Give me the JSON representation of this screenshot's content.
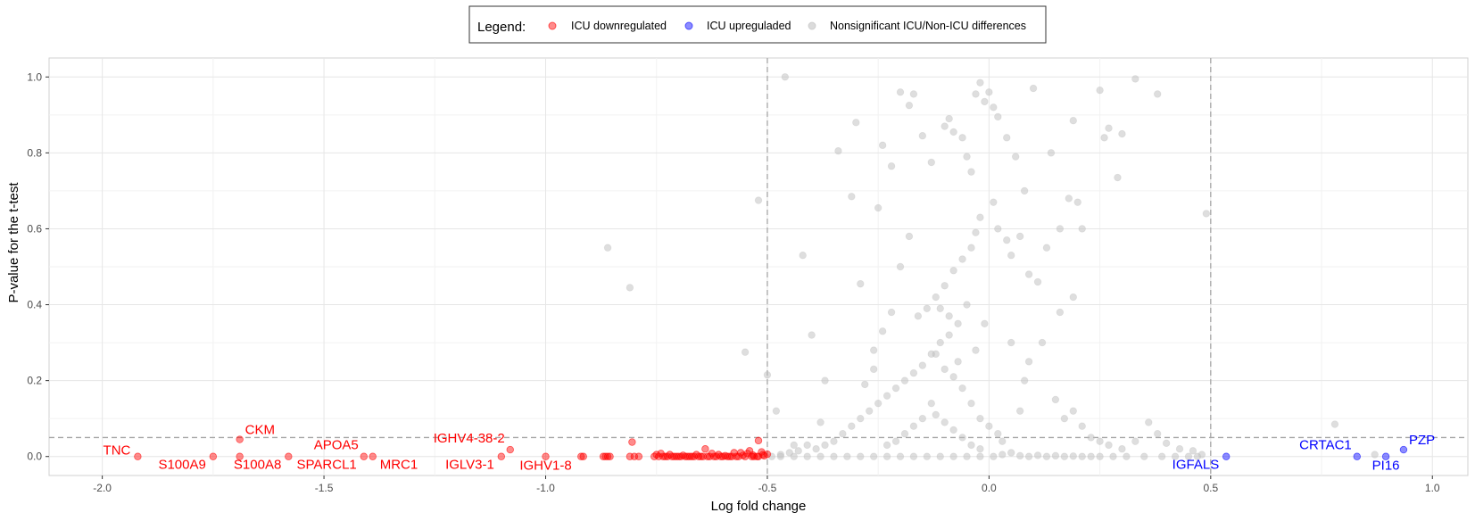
{
  "chart_data": {
    "type": "scatter",
    "xlabel": "Log fold change",
    "ylabel": "P-value for the t-test",
    "xlim": [
      -2.12,
      1.08
    ],
    "ylim": [
      -0.05,
      1.05
    ],
    "x_ticks": [
      -2.0,
      -1.5,
      -1.0,
      -0.5,
      0.0,
      0.5,
      1.0
    ],
    "x_tick_labels": [
      "-2.0",
      "-1.5",
      "-1.0",
      "-0.5",
      "0.0",
      "0.5",
      "1.0"
    ],
    "y_ticks": [
      0.0,
      0.2,
      0.4,
      0.6,
      0.8,
      1.0
    ],
    "y_tick_labels": [
      "0.0",
      "0.2",
      "0.4",
      "0.6",
      "0.8",
      "1.0"
    ],
    "grid": true,
    "thresholds": {
      "x": [
        -0.5,
        0.5
      ],
      "y": 0.05
    },
    "legend": {
      "title": "Legend:",
      "position": "top",
      "entries": [
        "ICU downregulated",
        "ICU upreguladed",
        "Nonsignificant ICU/Non-ICU differences"
      ]
    },
    "colors": {
      "down": "#ff0000",
      "up": "#0000ff",
      "ns": "#bebebe"
    },
    "series": [
      {
        "name": "ICU downregulated",
        "color": "#ff0000",
        "points": [
          [
            -1.92,
            0.0
          ],
          [
            -1.75,
            0.0
          ],
          [
            -1.69,
            0.045
          ],
          [
            -1.69,
            0.0
          ],
          [
            -1.58,
            0.0
          ],
          [
            -1.41,
            0.0
          ],
          [
            -1.39,
            0.0
          ],
          [
            -1.1,
            0.0
          ],
          [
            -1.08,
            0.018
          ],
          [
            -1.0,
            0.0
          ],
          [
            -0.92,
            0.0
          ],
          [
            -0.915,
            0.0
          ],
          [
            -0.87,
            0.0
          ],
          [
            -0.865,
            0.0
          ],
          [
            -0.86,
            0.0
          ],
          [
            -0.855,
            0.0
          ],
          [
            -0.81,
            0.0
          ],
          [
            -0.805,
            0.038
          ],
          [
            -0.8,
            0.0
          ],
          [
            -0.79,
            0.0
          ],
          [
            -0.75,
            0.005
          ],
          [
            -0.74,
            0.008
          ],
          [
            -0.73,
            0.0
          ],
          [
            -0.72,
            0.005
          ],
          [
            -0.71,
            0.0
          ],
          [
            -0.7,
            0.0
          ],
          [
            -0.69,
            0.003
          ],
          [
            -0.68,
            0.0
          ],
          [
            -0.67,
            0.0
          ],
          [
            -0.66,
            0.005
          ],
          [
            -0.65,
            0.0
          ],
          [
            -0.64,
            0.02
          ],
          [
            -0.63,
            0.0
          ],
          [
            -0.62,
            0.0
          ],
          [
            -0.61,
            0.005
          ],
          [
            -0.6,
            0.0
          ],
          [
            -0.59,
            0.0
          ],
          [
            -0.58,
            0.0
          ],
          [
            -0.57,
            0.0
          ],
          [
            -0.56,
            0.01
          ],
          [
            -0.55,
            0.0
          ],
          [
            -0.54,
            0.015
          ],
          [
            -0.53,
            0.0
          ],
          [
            -0.52,
            0.0
          ],
          [
            -0.51,
            0.005
          ],
          [
            -0.535,
            0.0
          ],
          [
            -0.545,
            0.008
          ],
          [
            -0.555,
            0.003
          ],
          [
            -0.565,
            0.0
          ],
          [
            -0.575,
            0.01
          ],
          [
            -0.585,
            0.0
          ],
          [
            -0.595,
            0.002
          ],
          [
            -0.605,
            0.0
          ],
          [
            -0.615,
            0.0
          ],
          [
            -0.625,
            0.008
          ],
          [
            -0.635,
            0.0
          ],
          [
            -0.645,
            0.0
          ],
          [
            -0.655,
            0.0
          ],
          [
            -0.665,
            0.0
          ],
          [
            -0.675,
            0.0
          ],
          [
            -0.685,
            0.0
          ],
          [
            -0.695,
            0.0
          ],
          [
            -0.705,
            0.0
          ],
          [
            -0.715,
            0.0
          ],
          [
            -0.725,
            0.0
          ],
          [
            -0.735,
            0.0
          ],
          [
            -0.745,
            0.0
          ],
          [
            -0.755,
            0.0
          ],
          [
            -0.52,
            0.042
          ],
          [
            -0.507,
            0.002
          ],
          [
            -0.5,
            0.006
          ],
          [
            -0.513,
            0.012
          ],
          [
            -0.523,
            0.0
          ],
          [
            -0.533,
            0.004
          ]
        ]
      },
      {
        "name": "ICU upreguladed",
        "color": "#0000ff",
        "points": [
          [
            0.535,
            0.0
          ],
          [
            0.83,
            0.0
          ],
          [
            0.895,
            0.0
          ],
          [
            0.935,
            0.018
          ]
        ]
      },
      {
        "name": "Nonsignificant ICU/Non-ICU differences",
        "color": "#bebebe",
        "points": [
          [
            -0.86,
            0.55
          ],
          [
            -0.81,
            0.445
          ],
          [
            -0.5,
            0.215
          ],
          [
            -0.52,
            0.675
          ],
          [
            -0.55,
            0.275
          ],
          [
            -0.46,
            1.0
          ],
          [
            -0.42,
            0.53
          ],
          [
            -0.4,
            0.32
          ],
          [
            -0.37,
            0.2
          ],
          [
            -0.34,
            0.805
          ],
          [
            -0.31,
            0.685
          ],
          [
            -0.3,
            0.88
          ],
          [
            -0.29,
            0.455
          ],
          [
            -0.25,
            0.655
          ],
          [
            -0.24,
            0.82
          ],
          [
            -0.22,
            0.765
          ],
          [
            -0.2,
            0.96
          ],
          [
            -0.18,
            0.925
          ],
          [
            -0.17,
            0.955
          ],
          [
            -0.15,
            0.845
          ],
          [
            -0.13,
            0.775
          ],
          [
            -0.1,
            0.87
          ],
          [
            -0.09,
            0.89
          ],
          [
            -0.08,
            0.855
          ],
          [
            -0.06,
            0.84
          ],
          [
            -0.05,
            0.79
          ],
          [
            -0.04,
            0.75
          ],
          [
            -0.03,
            0.955
          ],
          [
            -0.02,
            0.985
          ],
          [
            -0.01,
            0.935
          ],
          [
            0.0,
            0.96
          ],
          [
            0.01,
            0.92
          ],
          [
            0.02,
            0.895
          ],
          [
            0.04,
            0.84
          ],
          [
            0.06,
            0.79
          ],
          [
            0.08,
            0.7
          ],
          [
            0.1,
            0.97
          ],
          [
            0.14,
            0.8
          ],
          [
            0.19,
            0.885
          ],
          [
            0.25,
            0.965
          ],
          [
            0.26,
            0.84
          ],
          [
            0.27,
            0.865
          ],
          [
            0.29,
            0.735
          ],
          [
            0.3,
            0.85
          ],
          [
            0.33,
            0.995
          ],
          [
            0.38,
            0.955
          ],
          [
            0.49,
            0.64
          ],
          [
            -0.02,
            0.63
          ],
          [
            -0.03,
            0.59
          ],
          [
            -0.04,
            0.55
          ],
          [
            -0.06,
            0.52
          ],
          [
            -0.08,
            0.49
          ],
          [
            -0.1,
            0.45
          ],
          [
            -0.12,
            0.42
          ],
          [
            -0.14,
            0.39
          ],
          [
            -0.16,
            0.37
          ],
          [
            -0.18,
            0.58
          ],
          [
            -0.2,
            0.5
          ],
          [
            -0.22,
            0.38
          ],
          [
            -0.24,
            0.33
          ],
          [
            -0.26,
            0.28
          ],
          [
            0.01,
            0.67
          ],
          [
            0.02,
            0.6
          ],
          [
            0.04,
            0.57
          ],
          [
            0.05,
            0.53
          ],
          [
            0.07,
            0.58
          ],
          [
            0.09,
            0.48
          ],
          [
            0.11,
            0.46
          ],
          [
            0.13,
            0.55
          ],
          [
            0.16,
            0.6
          ],
          [
            0.18,
            0.68
          ],
          [
            0.2,
            0.67
          ],
          [
            0.21,
            0.6
          ],
          [
            0.19,
            0.42
          ],
          [
            0.16,
            0.38
          ],
          [
            0.12,
            0.3
          ],
          [
            0.09,
            0.25
          ],
          [
            0.08,
            0.2
          ],
          [
            0.15,
            0.15
          ],
          [
            0.17,
            0.1
          ],
          [
            0.19,
            0.12
          ],
          [
            0.21,
            0.08
          ],
          [
            0.23,
            0.05
          ],
          [
            0.25,
            0.04
          ],
          [
            0.27,
            0.03
          ],
          [
            0.3,
            0.02
          ],
          [
            0.33,
            0.04
          ],
          [
            0.36,
            0.09
          ],
          [
            0.38,
            0.06
          ],
          [
            0.4,
            0.035
          ],
          [
            0.43,
            0.02
          ],
          [
            0.46,
            0.015
          ],
          [
            0.48,
            0.005
          ],
          [
            -0.05,
            0.4
          ],
          [
            -0.07,
            0.35
          ],
          [
            -0.09,
            0.32
          ],
          [
            -0.11,
            0.3
          ],
          [
            -0.13,
            0.27
          ],
          [
            -0.15,
            0.24
          ],
          [
            -0.17,
            0.22
          ],
          [
            -0.19,
            0.2
          ],
          [
            -0.21,
            0.18
          ],
          [
            -0.23,
            0.16
          ],
          [
            -0.25,
            0.14
          ],
          [
            -0.27,
            0.12
          ],
          [
            -0.29,
            0.1
          ],
          [
            -0.31,
            0.08
          ],
          [
            -0.33,
            0.06
          ],
          [
            -0.35,
            0.04
          ],
          [
            -0.37,
            0.03
          ],
          [
            -0.39,
            0.02
          ],
          [
            -0.41,
            0.03
          ],
          [
            -0.43,
            0.015
          ],
          [
            -0.45,
            0.01
          ],
          [
            -0.47,
            0.005
          ],
          [
            -0.48,
            0.12
          ],
          [
            -0.44,
            0.03
          ],
          [
            -0.38,
            0.09
          ],
          [
            -0.28,
            0.19
          ],
          [
            -0.26,
            0.23
          ],
          [
            -0.12,
            0.27
          ],
          [
            -0.1,
            0.23
          ],
          [
            -0.08,
            0.21
          ],
          [
            -0.06,
            0.18
          ],
          [
            -0.04,
            0.14
          ],
          [
            -0.02,
            0.1
          ],
          [
            0.0,
            0.08
          ],
          [
            0.02,
            0.06
          ],
          [
            0.03,
            0.04
          ],
          [
            0.05,
            0.3
          ],
          [
            0.07,
            0.12
          ],
          [
            -0.01,
            0.35
          ],
          [
            -0.03,
            0.28
          ],
          [
            -0.07,
            0.25
          ],
          [
            -0.09,
            0.37
          ],
          [
            -0.11,
            0.39
          ],
          [
            -0.13,
            0.14
          ],
          [
            -0.15,
            0.1
          ],
          [
            -0.17,
            0.08
          ],
          [
            -0.19,
            0.06
          ],
          [
            -0.21,
            0.04
          ],
          [
            -0.23,
            0.03
          ],
          [
            -0.02,
            0.02
          ],
          [
            -0.04,
            0.03
          ],
          [
            -0.06,
            0.05
          ],
          [
            -0.08,
            0.07
          ],
          [
            -0.1,
            0.09
          ],
          [
            -0.12,
            0.11
          ],
          [
            0.01,
            0.0
          ],
          [
            0.03,
            0.005
          ],
          [
            0.05,
            0.01
          ],
          [
            0.07,
            0.002
          ],
          [
            0.09,
            0.0
          ],
          [
            0.11,
            0.003
          ],
          [
            0.13,
            0.0
          ],
          [
            0.15,
            0.002
          ],
          [
            0.17,
            0.0
          ],
          [
            0.19,
            0.001
          ],
          [
            0.21,
            0.0
          ],
          [
            0.23,
            0.0
          ],
          [
            0.25,
            0.0
          ],
          [
            0.28,
            0.0
          ],
          [
            0.31,
            0.0
          ],
          [
            0.35,
            0.0
          ],
          [
            0.39,
            0.0
          ],
          [
            0.42,
            0.0
          ],
          [
            0.45,
            0.0
          ],
          [
            0.47,
            0.0
          ],
          [
            -0.02,
            0.0
          ],
          [
            -0.05,
            0.0
          ],
          [
            -0.08,
            0.0
          ],
          [
            -0.11,
            0.0
          ],
          [
            -0.14,
            0.0
          ],
          [
            -0.17,
            0.0
          ],
          [
            -0.2,
            0.0
          ],
          [
            -0.23,
            0.0
          ],
          [
            -0.26,
            0.0
          ],
          [
            -0.29,
            0.0
          ],
          [
            -0.32,
            0.0
          ],
          [
            -0.35,
            0.0
          ],
          [
            -0.38,
            0.0
          ],
          [
            -0.41,
            0.0
          ],
          [
            -0.44,
            0.0
          ],
          [
            -0.47,
            0.0
          ],
          [
            -0.49,
            0.0
          ],
          [
            0.78,
            0.085
          ],
          [
            0.87,
            0.005
          ]
        ]
      }
    ],
    "annotations": [
      {
        "text": "TNC",
        "x": -1.92,
        "y": 0.0,
        "color": "#ff0000",
        "side": "left"
      },
      {
        "text": "S100A9",
        "x": -1.75,
        "y": 0.0,
        "color": "#ff0000",
        "side": "below-left"
      },
      {
        "text": "CKM",
        "x": -1.69,
        "y": 0.045,
        "color": "#ff0000",
        "side": "above-right"
      },
      {
        "text": "S100A8",
        "x": -1.58,
        "y": 0.0,
        "color": "#ff0000",
        "side": "below-left"
      },
      {
        "text": "APOA5",
        "x": -1.41,
        "y": 0.0,
        "color": "#ff0000",
        "side": "above-left"
      },
      {
        "text": "SPARCL1",
        "x": -1.41,
        "y": 0.0,
        "color": "#ff0000",
        "side": "below-left"
      },
      {
        "text": "MRC1",
        "x": -1.39,
        "y": 0.0,
        "color": "#ff0000",
        "side": "below-right"
      },
      {
        "text": "IGHV4-38-2",
        "x": -1.08,
        "y": 0.018,
        "color": "#ff0000",
        "side": "above-left"
      },
      {
        "text": "IGLV3-1",
        "x": -1.1,
        "y": 0.0,
        "color": "#ff0000",
        "side": "below-left"
      },
      {
        "text": "IGHV1-8",
        "x": -1.0,
        "y": 0.0,
        "color": "#ff0000",
        "side": "below-center"
      },
      {
        "text": "IGFALS",
        "x": 0.535,
        "y": 0.0,
        "color": "#0000ff",
        "side": "below-left"
      },
      {
        "text": "CRTAC1",
        "x": 0.83,
        "y": 0.0,
        "color": "#0000ff",
        "side": "above-left"
      },
      {
        "text": "PI16",
        "x": 0.895,
        "y": 0.0,
        "color": "#0000ff",
        "side": "below-center"
      },
      {
        "text": "PZP",
        "x": 0.935,
        "y": 0.018,
        "color": "#0000ff",
        "side": "above-right"
      }
    ]
  }
}
